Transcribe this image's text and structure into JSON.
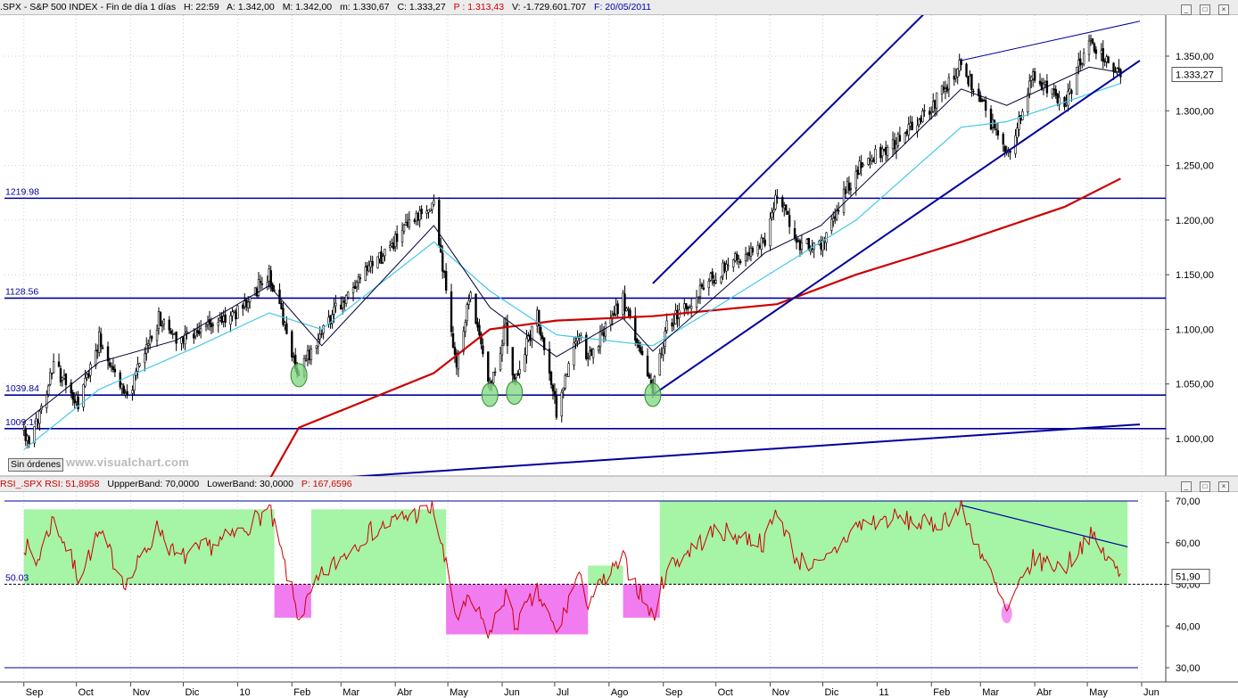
{
  "header_price": {
    "symbol": ".SPX - S&P 500 INDEX - Fin de día 1 días",
    "time": "H: 22:59",
    "open": "A: 1.342,00",
    "high": "M: 1.342,00",
    "low": "m: 1.330,67",
    "close": "C: 1.333,27",
    "prev": "P : 1.313,43",
    "volume": "V: -1.729.601.707",
    "date": "F: 20/05/2011"
  },
  "header_rsi": {
    "name": "RSI_.SPX RSI: 51,8958",
    "upper": "UppperBand: 70,0000",
    "lower": "LowerBand: 30,0000",
    "prev": "P: 167,6596"
  },
  "window_buttons": [
    "_",
    "□",
    "×"
  ],
  "status_button": "Sin órdenes",
  "watermark": "www.visualchart.com",
  "colors": {
    "price": "#000000",
    "sma_fast": "#000033",
    "sma_mid": "#44c8e8",
    "sma_slow": "#cc0000",
    "levels": "#00009c",
    "rsi": "#cc0000",
    "band_green": "#a6f4a6",
    "band_pink": "#f07cf0",
    "marker": "#7ed67e"
  },
  "chart_data": [
    {
      "type": "candlestick",
      "title": ".SPX - S&P 500 INDEX",
      "ylim": [
        960,
        1385
      ],
      "y_ticks": [
        "1.000,00",
        "1.050,00",
        "1.100,00",
        "1.150,00",
        "1.200,00",
        "1.250,00",
        "1.300,00",
        "1.350,00"
      ],
      "last_label": "1.333,27",
      "x_labels": [
        "Sep",
        "Oct",
        "Nov",
        "Dic",
        "10",
        "Feb",
        "Mar",
        "Abr",
        "May",
        "Jun",
        "Jul",
        "Ago",
        "Sep",
        "Oct",
        "Nov",
        "Dic",
        "11",
        "Feb",
        "Mar",
        "Abr",
        "May",
        "Jun"
      ],
      "key_points": [
        [
          "2009-09-01",
          1008
        ],
        [
          "2009-09-04",
          992
        ],
        [
          "2009-09-18",
          1068
        ],
        [
          "2009-10-02",
          1030
        ],
        [
          "2009-10-14",
          1092
        ],
        [
          "2009-10-30",
          1037
        ],
        [
          "2009-11-17",
          1110
        ],
        [
          "2009-11-27",
          1092
        ],
        [
          "2009-12-10",
          1100
        ],
        [
          "2009-12-31",
          1115
        ],
        [
          "2010-01-19",
          1150
        ],
        [
          "2010-02-05",
          1058
        ],
        [
          "2010-02-18",
          1102
        ],
        [
          "2010-03-15",
          1150
        ],
        [
          "2010-04-05",
          1188
        ],
        [
          "2010-04-23",
          1215
        ],
        [
          "2010-05-06",
          1065
        ],
        [
          "2010-05-14",
          1135
        ],
        [
          "2010-05-25",
          1050
        ],
        [
          "2010-06-03",
          1102
        ],
        [
          "2010-06-08",
          1052
        ],
        [
          "2010-06-21",
          1115
        ],
        [
          "2010-07-02",
          1025
        ],
        [
          "2010-07-14",
          1095
        ],
        [
          "2010-07-20",
          1072
        ],
        [
          "2010-08-09",
          1128
        ],
        [
          "2010-08-26",
          1045
        ],
        [
          "2010-09-03",
          1102
        ],
        [
          "2010-10-01",
          1150
        ],
        [
          "2010-10-29",
          1182
        ],
        [
          "2010-11-05",
          1225
        ],
        [
          "2010-11-16",
          1178
        ],
        [
          "2010-11-30",
          1180
        ],
        [
          "2010-12-20",
          1245
        ],
        [
          "2011-01-10",
          1270
        ],
        [
          "2011-02-01",
          1305
        ],
        [
          "2011-02-18",
          1342
        ],
        [
          "2011-03-01",
          1310
        ],
        [
          "2011-03-16",
          1258
        ],
        [
          "2011-03-31",
          1330
        ],
        [
          "2011-04-18",
          1305
        ],
        [
          "2011-05-02",
          1365
        ],
        [
          "2011-05-20",
          1333
        ]
      ],
      "sma_key_points": {
        "fast": [
          [
            "2009-09-01",
            1015
          ],
          [
            "2009-10-14",
            1070
          ],
          [
            "2009-11-27",
            1090
          ],
          [
            "2010-01-19",
            1140
          ],
          [
            "2010-02-18",
            1085
          ],
          [
            "2010-04-23",
            1195
          ],
          [
            "2010-05-25",
            1120
          ],
          [
            "2010-07-02",
            1075
          ],
          [
            "2010-08-09",
            1110
          ],
          [
            "2010-08-26",
            1080
          ],
          [
            "2010-10-29",
            1170
          ],
          [
            "2010-11-30",
            1195
          ],
          [
            "2011-02-18",
            1320
          ],
          [
            "2011-03-16",
            1305
          ],
          [
            "2011-05-02",
            1340
          ],
          [
            "2011-05-20",
            1335
          ]
        ],
        "mid": [
          [
            "2009-09-01",
            990
          ],
          [
            "2009-10-14",
            1045
          ],
          [
            "2009-12-10",
            1085
          ],
          [
            "2010-01-19",
            1115
          ],
          [
            "2010-02-18",
            1100
          ],
          [
            "2010-04-23",
            1180
          ],
          [
            "2010-05-25",
            1135
          ],
          [
            "2010-07-02",
            1095
          ],
          [
            "2010-08-26",
            1085
          ],
          [
            "2010-10-01",
            1120
          ],
          [
            "2010-12-20",
            1200
          ],
          [
            "2011-02-18",
            1285
          ],
          [
            "2011-03-16",
            1290
          ],
          [
            "2011-05-20",
            1325
          ]
        ],
        "slow": [
          [
            "2010-01-19",
            962
          ],
          [
            "2010-02-05",
            1010
          ],
          [
            "2010-04-23",
            1060
          ],
          [
            "2010-05-25",
            1100
          ],
          [
            "2010-07-02",
            1108
          ],
          [
            "2010-08-26",
            1112
          ],
          [
            "2010-11-05",
            1123
          ],
          [
            "2010-12-20",
            1150
          ],
          [
            "2011-02-18",
            1180
          ],
          [
            "2011-04-18",
            1212
          ],
          [
            "2011-05-20",
            1238
          ]
        ]
      },
      "levels": [
        {
          "label": "1219.98",
          "value": 1219.98
        },
        {
          "label": "1128.56",
          "value": 1128.56
        },
        {
          "label": "1039.84",
          "value": 1039.84
        },
        {
          "label": "1009.10",
          "value": 1009.1
        }
      ],
      "trendlines": [
        {
          "from": [
            "2010-08-26",
            1142
          ],
          "to": [
            "2011-03-01",
            1440
          ],
          "width": 2
        },
        {
          "from": [
            "2010-08-26",
            1040
          ],
          "to": [
            "2011-05-31",
            1346
          ],
          "width": 2
        },
        {
          "from": [
            "2011-02-18",
            1346
          ],
          "to": [
            "2011-05-31",
            1382
          ],
          "width": 1
        },
        {
          "from": [
            "2010-01-19",
            960
          ],
          "to": [
            "2011-05-31",
            1013
          ],
          "width": 2
        }
      ],
      "markers": [
        [
          "2010-02-05",
          1058
        ],
        [
          "2010-05-25",
          1040
        ],
        [
          "2010-06-08",
          1042
        ],
        [
          "2010-08-26",
          1040
        ]
      ]
    },
    {
      "type": "line",
      "title": "RSI_.SPX",
      "ylim": [
        27,
        72
      ],
      "y_ticks": [
        "30,00",
        "40,00",
        "50,00",
        "60,00",
        "70,00"
      ],
      "last_label": "51,90",
      "reference_label": "50.03",
      "reference_value": 50.03,
      "upper_band": 70,
      "lower_band": 30,
      "key_points": [
        [
          "2009-09-01",
          60
        ],
        [
          "2009-09-08",
          55
        ],
        [
          "2009-09-18",
          66
        ],
        [
          "2009-10-02",
          52
        ],
        [
          "2009-10-14",
          62
        ],
        [
          "2009-10-30",
          50
        ],
        [
          "2009-11-17",
          64
        ],
        [
          "2009-11-27",
          56
        ],
        [
          "2009-12-10",
          58
        ],
        [
          "2009-12-31",
          62
        ],
        [
          "2010-01-19",
          68
        ],
        [
          "2010-02-05",
          42
        ],
        [
          "2010-02-18",
          52
        ],
        [
          "2010-03-15",
          62
        ],
        [
          "2010-04-05",
          66
        ],
        [
          "2010-04-23",
          68
        ],
        [
          "2010-05-06",
          42
        ],
        [
          "2010-05-14",
          46
        ],
        [
          "2010-05-25",
          38
        ],
        [
          "2010-06-03",
          48
        ],
        [
          "2010-06-08",
          40
        ],
        [
          "2010-06-21",
          48
        ],
        [
          "2010-07-02",
          38
        ],
        [
          "2010-07-14",
          52
        ],
        [
          "2010-07-20",
          46
        ],
        [
          "2010-08-09",
          56
        ],
        [
          "2010-08-26",
          42
        ],
        [
          "2010-09-03",
          54
        ],
        [
          "2010-10-01",
          63
        ],
        [
          "2010-10-29",
          60
        ],
        [
          "2010-11-05",
          68
        ],
        [
          "2010-11-16",
          56
        ],
        [
          "2010-11-30",
          54
        ],
        [
          "2010-12-20",
          64
        ],
        [
          "2011-01-10",
          66
        ],
        [
          "2011-02-01",
          64
        ],
        [
          "2011-02-18",
          68
        ],
        [
          "2011-03-01",
          58
        ],
        [
          "2011-03-16",
          43
        ],
        [
          "2011-03-31",
          56
        ],
        [
          "2011-04-18",
          54
        ],
        [
          "2011-05-02",
          62
        ],
        [
          "2011-05-20",
          52
        ]
      ],
      "zones": [
        {
          "kind": "overbought",
          "from": "2009-09-01",
          "to": "2010-01-22",
          "low": 50,
          "high": 68
        },
        {
          "kind": "oversold",
          "from": "2010-01-22",
          "to": "2010-02-12",
          "low": 42,
          "high": 50
        },
        {
          "kind": "overbought",
          "from": "2010-02-12",
          "to": "2010-04-30",
          "low": 50,
          "high": 68
        },
        {
          "kind": "oversold",
          "from": "2010-04-30",
          "to": "2010-07-20",
          "low": 38,
          "high": 50
        },
        {
          "kind": "overbought",
          "from": "2010-07-20",
          "to": "2010-08-09",
          "low": 50,
          "high": 54.5
        },
        {
          "kind": "oversold",
          "from": "2010-08-09",
          "to": "2010-08-30",
          "low": 42,
          "high": 50
        },
        {
          "kind": "overbought",
          "from": "2010-08-30",
          "to": "2011-05-24",
          "low": 50,
          "high": 70
        }
      ],
      "trendline": {
        "from": [
          "2011-02-18",
          69
        ],
        "to": [
          "2011-05-24",
          59
        ]
      },
      "marker": [
        "2011-03-16",
        43
      ]
    }
  ]
}
